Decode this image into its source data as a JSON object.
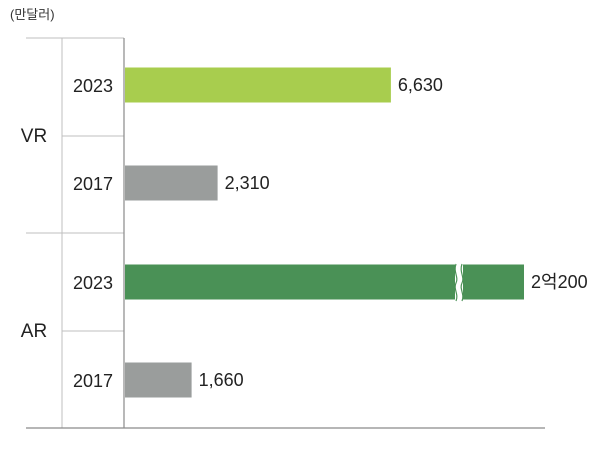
{
  "chart_data": {
    "type": "bar",
    "orientation": "horizontal",
    "unit_label": "(만달러)",
    "groups": [
      {
        "name": "VR",
        "bars": [
          {
            "year": "2023",
            "value": 6630,
            "label": "6,630",
            "color": "#a8cd4e"
          },
          {
            "year": "2017",
            "value": 2310,
            "label": "2,310",
            "color": "#9a9d9c"
          }
        ]
      },
      {
        "name": "AR",
        "bars": [
          {
            "year": "2023",
            "value": 20200,
            "label": "2억200",
            "color": "#4a9156",
            "axis_break": true
          },
          {
            "year": "2017",
            "value": 1660,
            "label": "1,660",
            "color": "#9a9d9c"
          }
        ]
      }
    ],
    "legend": "none",
    "grid": false
  }
}
